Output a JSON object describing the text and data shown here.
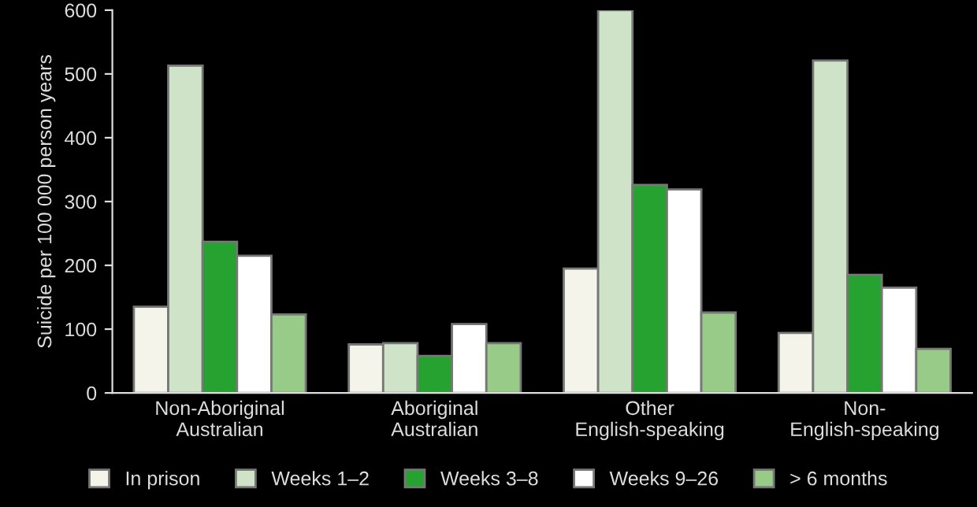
{
  "chart_data": {
    "type": "bar",
    "ylabel": "Suicide per 100 000 person years",
    "categories": [
      "Non-Aboriginal\nAustralian",
      "Aboriginal\nAustralian",
      "Other\nEnglish-speaking",
      "Non-\nEnglish-speaking"
    ],
    "series": [
      {
        "name": "In prison",
        "color": "#f4f4ea",
        "values": [
          135,
          76,
          195,
          94
        ]
      },
      {
        "name": "Weeks 1–2",
        "color": "#cfe3c9",
        "values": [
          513,
          78,
          600,
          521
        ]
      },
      {
        "name": "Weeks 3–8",
        "color": "#26a230",
        "values": [
          237,
          58,
          326,
          185
        ]
      },
      {
        "name": "Weeks 9–26",
        "color": "#ffffff",
        "values": [
          215,
          108,
          319,
          165
        ]
      },
      {
        "name": "> 6 months",
        "color": "#98cb88",
        "values": [
          123,
          78,
          126,
          69
        ]
      }
    ],
    "ylim": [
      0,
      600
    ],
    "yticks": [
      0,
      100,
      200,
      300,
      400,
      500,
      600
    ],
    "grid": false,
    "legend": "bottom"
  }
}
